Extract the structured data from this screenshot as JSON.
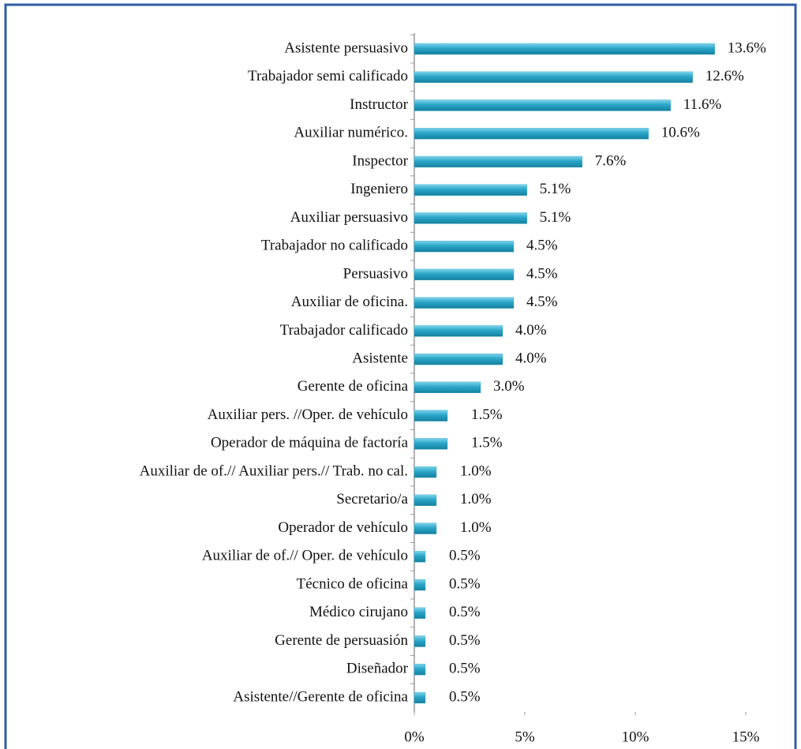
{
  "chart_data": {
    "type": "bar",
    "orientation": "horizontal",
    "categories": [
      "Asistente persuasivo",
      "Trabajador semi calificado",
      "Instructor",
      "Auxiliar numérico.",
      "Inspector",
      "Ingeniero",
      "Auxiliar persuasivo",
      "Trabajador no calificado",
      "Persuasivo",
      "Auxiliar de oficina.",
      "Trabajador calificado",
      "Asistente",
      "Gerente de oficina",
      "Auxiliar pers. //Oper. de vehículo",
      "Operador de máquina de factoría",
      "Auxiliar de of.// Auxiliar pers.// Trab. no cal.",
      "Secretario/a",
      "Operador de vehículo",
      "Auxiliar de of.// Oper. de vehículo",
      "Técnico de oficina",
      "Médico cirujano",
      "Gerente de persuasión",
      "Diseñador",
      "Asistente//Gerente de oficina"
    ],
    "values": [
      13.6,
      12.6,
      11.6,
      10.6,
      7.6,
      5.1,
      5.1,
      4.5,
      4.5,
      4.5,
      4.0,
      4.0,
      3.0,
      1.5,
      1.5,
      1.0,
      1.0,
      1.0,
      0.5,
      0.5,
      0.5,
      0.5,
      0.5,
      0.5
    ],
    "value_labels": [
      "13.6%",
      "12.6%",
      "11.6%",
      "10.6%",
      "7.6%",
      "5.1%",
      "5.1%",
      "4.5%",
      "4.5%",
      "4.5%",
      "4.0%",
      "4.0%",
      "3.0%",
      "1.5%",
      "1.5%",
      "1.0%",
      "1.0%",
      "1.0%",
      "0.5%",
      "0.5%",
      "0.5%",
      "0.5%",
      "0.5%",
      "0.5%"
    ],
    "color": "#2aa6c9",
    "xlim": [
      0,
      15
    ],
    "xticks": [
      {
        "value": 0,
        "label": "0%"
      },
      {
        "value": 5,
        "label": "5%"
      },
      {
        "value": 10,
        "label": "10%"
      },
      {
        "value": 15,
        "label": "15%"
      }
    ],
    "grid": false
  }
}
